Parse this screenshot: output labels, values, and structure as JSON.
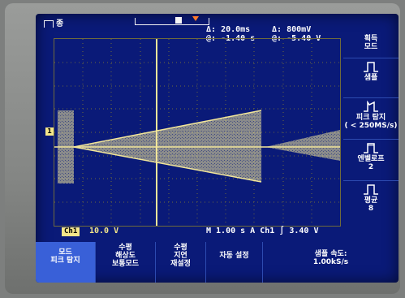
{
  "top": {
    "trigger_word": "종",
    "delta_time_label": "Δ:",
    "delta_time": "20.0ms",
    "delta_volt_label": "Δ:",
    "delta_volt": "800mV",
    "at_time_label": "@:",
    "at_time": "-1.40 s",
    "at_volt_label": "@:",
    "at_volt": "-5.40 V"
  },
  "right_menu": {
    "acquire_mode": "획득\n모드",
    "sample": "샘플",
    "peak_detect": "피크 탐지\n( < 250MS/s)",
    "averaging": "엔벨로프\n2",
    "average": "평균\n8"
  },
  "info": {
    "ch1_badge": "Ch1",
    "ch1_scale": "10.0 V",
    "timebase": "M 1.00 s  A  Ch1  ∫  3.40 V"
  },
  "bottom_menu": [
    {
      "title": "모드",
      "sub": "피크 탐지",
      "selected": true
    },
    {
      "title": "수평",
      "sub": "해상도\n보통모드",
      "selected": false
    },
    {
      "title": "수평",
      "sub": "지연\n재설정",
      "selected": false
    },
    {
      "title": "자동 설정",
      "sub": "",
      "selected": false
    },
    {
      "title": "샘플 속도:",
      "sub": "1.00kS/s",
      "selected": false
    }
  ],
  "colors": {
    "screen_bg": "#0a1a78",
    "trace": "#f2e69a",
    "accent": "#3960d8"
  }
}
